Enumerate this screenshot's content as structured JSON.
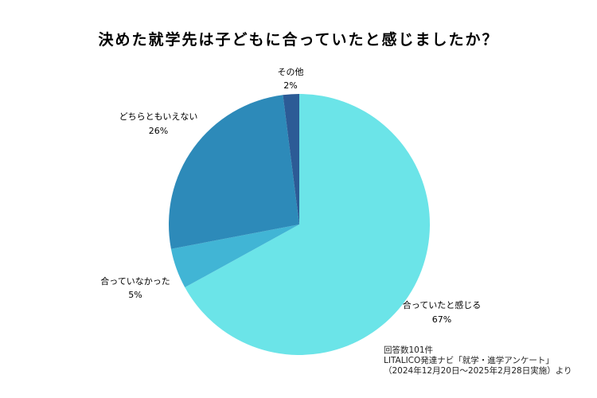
{
  "chart_data": {
    "type": "pie",
    "title": "決めた就学先は子どもに合っていたと感じましたか？",
    "slices": [
      {
        "label": "合っていたと感じる",
        "value": 67,
        "pct_label": "67%",
        "color": "#6BE4E8"
      },
      {
        "label": "合っていなかった",
        "value": 5,
        "pct_label": "5%",
        "color": "#41B5D5"
      },
      {
        "label": "どちらともいえない",
        "value": 26,
        "pct_label": "26%",
        "color": "#2D8AB9"
      },
      {
        "label": "その他",
        "value": 2,
        "pct_label": "2%",
        "color": "#2C5B96"
      }
    ]
  },
  "source_note": {
    "line1": "回答数101件",
    "line2": "LITALICO発達ナビ「就学・進学アンケート」",
    "line3": "（2024年12月20日～2025年2月28日実施）より"
  }
}
